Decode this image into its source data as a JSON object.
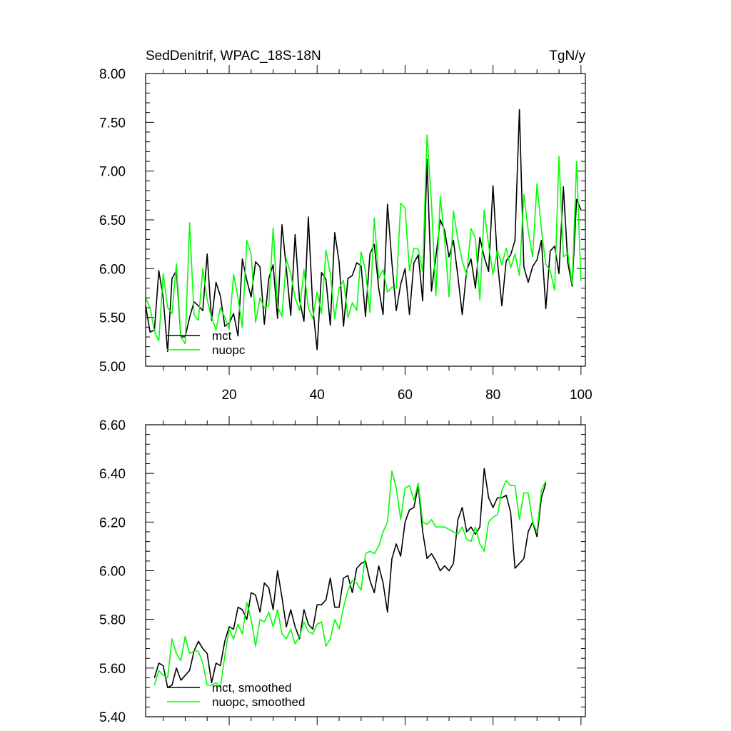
{
  "chart_data": [
    {
      "type": "line",
      "title": "SedDenitrif, WPAC_18S-18N",
      "units": "TgN/y",
      "xlabel": "",
      "ylabel": "",
      "xlim": [
        1,
        101
      ],
      "ylim": [
        5.0,
        8.0
      ],
      "xticks": [
        "20",
        "40",
        "60",
        "80",
        "100"
      ],
      "xtick_values": [
        20,
        40,
        60,
        80,
        100
      ],
      "yticks": [
        "5.00",
        "5.50",
        "6.00",
        "6.50",
        "7.00",
        "7.50",
        "8.00"
      ],
      "ytick_values": [
        5.0,
        5.5,
        6.0,
        6.5,
        7.0,
        7.5,
        8.0
      ],
      "x_start": 1,
      "series": [
        {
          "name": "mct",
          "color": "#000000",
          "values": [
            5.62,
            5.35,
            5.37,
            5.98,
            5.7,
            5.15,
            5.9,
            5.98,
            5.3,
            5.3,
            5.5,
            5.66,
            5.62,
            5.57,
            6.15,
            5.47,
            5.86,
            5.72,
            5.41,
            5.44,
            5.54,
            5.31,
            6.1,
            5.88,
            5.71,
            6.07,
            6.02,
            5.43,
            5.9,
            6.04,
            5.49,
            6.45,
            6.0,
            5.52,
            6.35,
            5.68,
            5.46,
            6.53,
            5.61,
            5.17,
            5.96,
            5.89,
            5.42,
            6.37,
            6.07,
            5.41,
            5.9,
            5.93,
            6.06,
            6.03,
            5.51,
            6.15,
            6.25,
            5.8,
            5.53,
            6.66,
            6.06,
            5.57,
            5.84,
            6.0,
            5.53,
            6.06,
            6.14,
            5.67,
            7.12,
            5.77,
            6.12,
            6.5,
            6.39,
            6.12,
            6.29,
            5.92,
            5.53,
            5.98,
            6.1,
            5.8,
            6.32,
            6.12,
            5.97,
            6.85,
            6.08,
            5.62,
            6.08,
            6.14,
            6.29,
            7.63,
            6.02,
            5.86,
            6.02,
            6.09,
            6.29,
            5.59,
            6.18,
            6.23,
            5.95,
            6.84,
            6.06,
            5.82,
            6.71,
            6.6
          ]
        },
        {
          "name": "nuopc",
          "color": "#00ff00",
          "values": [
            5.7,
            5.6,
            5.36,
            5.26,
            5.95,
            5.6,
            5.54,
            6.05,
            5.3,
            5.23,
            6.47,
            5.53,
            5.47,
            6.0,
            5.68,
            5.5,
            5.37,
            5.6,
            5.5,
            5.38,
            5.94,
            5.7,
            5.4,
            6.29,
            6.15,
            5.45,
            5.7,
            5.6,
            5.62,
            6.42,
            5.61,
            5.51,
            6.1,
            5.95,
            5.7,
            5.57,
            5.99,
            5.6,
            5.49,
            5.76,
            5.54,
            6.19,
            5.95,
            5.49,
            5.8,
            5.88,
            5.5,
            5.65,
            5.57,
            6.17,
            5.98,
            5.55,
            6.52,
            5.9,
            5.99,
            5.76,
            5.81,
            5.8,
            6.67,
            6.62,
            5.98,
            6.21,
            6.2,
            5.97,
            7.37,
            6.67,
            5.72,
            6.74,
            6.3,
            5.71,
            6.59,
            6.3,
            6.08,
            5.93,
            6.41,
            6.31,
            5.68,
            6.6,
            6.24,
            5.94,
            6.19,
            6.04,
            6.21,
            6.01,
            6.15,
            5.93,
            6.76,
            6.39,
            6.12,
            6.87,
            6.4,
            6.04,
            5.98,
            5.78,
            7.15,
            6.12,
            6.16,
            5.84,
            7.1,
            5.87
          ]
        }
      ],
      "legend": {
        "placement": "lower-left",
        "entries": [
          "mct",
          "nuopc"
        ]
      }
    },
    {
      "type": "line",
      "title": "",
      "xlabel": "",
      "ylabel": "",
      "xlim": [
        1,
        101
      ],
      "ylim": [
        5.4,
        6.6
      ],
      "xticks": [],
      "xtick_values": [
        20,
        40,
        60,
        80,
        100
      ],
      "yticks": [
        "5.40",
        "5.60",
        "5.80",
        "6.00",
        "6.20",
        "6.40",
        "6.60"
      ],
      "ytick_values": [
        5.4,
        5.6,
        5.8,
        6.0,
        6.2,
        6.4,
        6.6
      ],
      "x_start": 3,
      "series": [
        {
          "name": "mct, smoothed",
          "color": "#000000",
          "values": [
            5.56,
            5.62,
            5.61,
            5.52,
            5.53,
            5.6,
            5.55,
            5.57,
            5.59,
            5.67,
            5.71,
            5.68,
            5.66,
            5.54,
            5.62,
            5.61,
            5.71,
            5.77,
            5.76,
            5.85,
            5.84,
            5.8,
            5.91,
            5.9,
            5.83,
            5.95,
            5.93,
            5.84,
            6.0,
            5.89,
            5.77,
            5.84,
            5.77,
            5.72,
            5.84,
            5.78,
            5.76,
            5.86,
            5.86,
            5.88,
            5.97,
            5.85,
            5.85,
            5.97,
            5.98,
            5.91,
            6.01,
            6.03,
            6.04,
            5.96,
            5.91,
            6.02,
            5.95,
            5.83,
            6.05,
            6.11,
            6.06,
            6.2,
            6.25,
            6.26,
            6.35,
            6.16,
            6.05,
            6.07,
            6.04,
            6.0,
            6.02,
            6.0,
            6.03,
            6.21,
            6.26,
            6.16,
            6.18,
            6.15,
            6.18,
            6.42,
            6.3,
            6.26,
            6.3,
            6.3,
            6.31,
            6.24,
            6.01,
            6.03,
            6.05,
            6.16,
            6.2,
            6.14,
            6.3,
            6.36
          ]
        },
        {
          "name": "nuopc, smoothed",
          "color": "#00ff00",
          "values": [
            5.53,
            5.59,
            5.57,
            5.56,
            5.72,
            5.66,
            5.63,
            5.73,
            5.66,
            5.67,
            5.67,
            5.62,
            5.53,
            5.53,
            5.54,
            5.52,
            5.65,
            5.76,
            5.72,
            5.78,
            5.74,
            5.87,
            5.8,
            5.69,
            5.8,
            5.79,
            5.83,
            5.77,
            5.84,
            5.74,
            5.72,
            5.76,
            5.7,
            5.73,
            5.79,
            5.75,
            5.74,
            5.78,
            5.79,
            5.69,
            5.72,
            5.8,
            5.76,
            5.85,
            5.92,
            5.96,
            5.95,
            5.92,
            6.07,
            6.08,
            6.07,
            6.1,
            6.16,
            6.2,
            6.41,
            6.34,
            6.21,
            6.34,
            6.35,
            6.29,
            6.36,
            6.2,
            6.19,
            6.21,
            6.18,
            6.18,
            6.18,
            6.17,
            6.16,
            6.15,
            6.18,
            6.13,
            6.12,
            6.18,
            6.11,
            6.08,
            6.2,
            6.22,
            6.23,
            6.33,
            6.37,
            6.35,
            6.35,
            6.21,
            6.32,
            6.32,
            6.2,
            6.16,
            6.33,
            6.37
          ]
        }
      ],
      "legend": {
        "placement": "lower-left",
        "entries": [
          "mct, smoothed",
          "nuopc, smoothed"
        ]
      }
    }
  ]
}
